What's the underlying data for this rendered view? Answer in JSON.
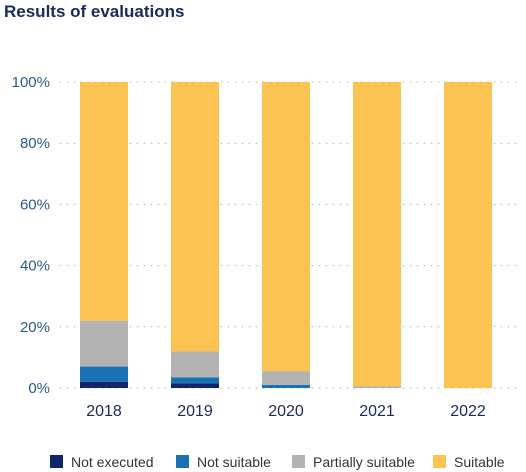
{
  "chart_data": {
    "type": "bar",
    "stacked": true,
    "title": "Results of evaluations",
    "xlabel": "",
    "ylabel": "",
    "categories": [
      "2018",
      "2019",
      "2020",
      "2021",
      "2022"
    ],
    "ylim": [
      0,
      100
    ],
    "yticks": [
      "0%",
      "20%",
      "40%",
      "60%",
      "80%",
      "100%"
    ],
    "grid": true,
    "legend_position": "bottom",
    "series": [
      {
        "name": "Not executed",
        "color": "#13266b",
        "values": [
          2,
          1.5,
          0,
          0,
          0
        ]
      },
      {
        "name": "Not suitable",
        "color": "#1a72b4",
        "values": [
          5,
          2,
          1,
          0,
          0
        ]
      },
      {
        "name": "Partially suitable",
        "color": "#b3b3b3",
        "values": [
          15,
          8.5,
          4.5,
          0.5,
          0
        ]
      },
      {
        "name": "Suitable",
        "color": "#fbc351",
        "values": [
          78,
          88,
          94.5,
          99.5,
          100
        ]
      }
    ]
  }
}
